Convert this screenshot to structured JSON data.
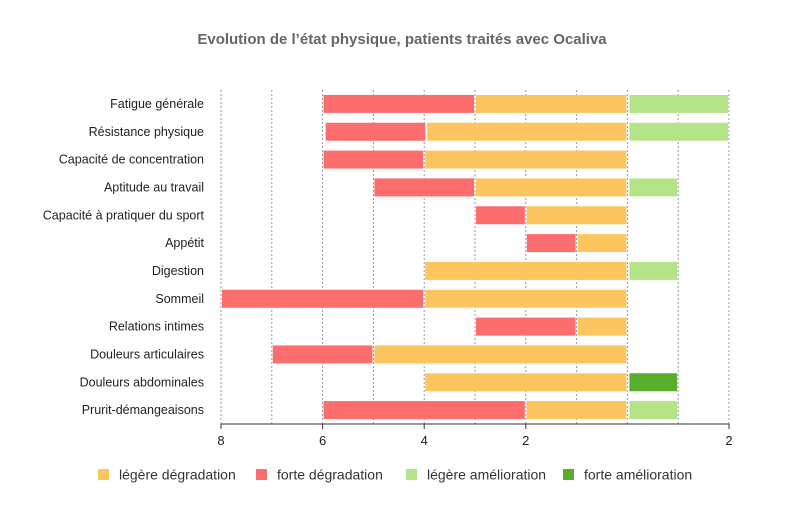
{
  "chart_data": {
    "type": "bar",
    "orientation": "horizontal-diverging",
    "title": "Evolution de l’état physique, patients traités avec Ocaliva",
    "categories": [
      "Fatigue générale",
      "Résistance physique",
      "Capacité de concentration",
      "Aptitude au travail",
      "Capacité à pratiquer du sport",
      "Appétit",
      "Digestion",
      "Sommeil",
      "Relations intimes",
      "Douleurs articulaires",
      "Douleurs abdominales",
      "Prurit-démangeaisons"
    ],
    "x_ticks": [
      {
        "value": -8,
        "label": "8"
      },
      {
        "value": -6,
        "label": "6"
      },
      {
        "value": -4,
        "label": "4"
      },
      {
        "value": -2,
        "label": "2"
      },
      {
        "value": 2,
        "label": "2"
      }
    ],
    "xlim": [
      -8,
      2
    ],
    "grid": "vertical dashed",
    "legend_position": "bottom",
    "series": [
      {
        "name": "légère dégradation",
        "side": "negative",
        "color": "#FDC55F",
        "values": [
          3,
          3.96,
          4,
          3,
          2,
          1,
          4,
          4,
          1,
          5,
          4,
          2
        ]
      },
      {
        "name": "forte  dégradation",
        "side": "negative",
        "color": "#FC6E6E",
        "values": [
          3,
          2,
          2,
          2,
          1,
          1,
          0,
          4,
          2,
          2,
          0,
          4
        ]
      },
      {
        "name": "légère amélioration",
        "side": "positive",
        "color": "#B4E388",
        "values": [
          2,
          2,
          0,
          1,
          0,
          0,
          1,
          0,
          0,
          0,
          0,
          1
        ]
      },
      {
        "name": "forte amélioration",
        "side": "positive",
        "color": "#56AE2B",
        "values": [
          0,
          0,
          0,
          0,
          0,
          0,
          0,
          0,
          0,
          0,
          1,
          0
        ]
      }
    ]
  }
}
